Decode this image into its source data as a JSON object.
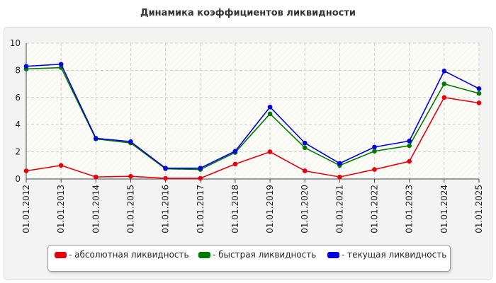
{
  "chart_data": {
    "type": "line",
    "title": "Динамика коэффициентов ликвидности",
    "categories": [
      "01.01.2012",
      "01.01.2013",
      "01.01.2014",
      "01.01.2015",
      "01.01.2016",
      "01.01.2017",
      "01.01.2018",
      "01.01.2019",
      "01.01.2020",
      "01.01.2021",
      "01.01.2022",
      "01.01.2023",
      "01.01.2024",
      "01.01.2025"
    ],
    "series": [
      {
        "name": "- абсолютная ликвидность",
        "color": "#e8000b",
        "values": [
          0.6,
          1.0,
          0.15,
          0.2,
          0.05,
          0.05,
          1.1,
          2.0,
          0.6,
          0.15,
          0.7,
          1.3,
          6.0,
          5.6
        ]
      },
      {
        "name": "- быстрая ликвидность",
        "color": "#007a00",
        "values": [
          8.1,
          8.2,
          2.95,
          2.65,
          0.75,
          0.7,
          1.95,
          4.8,
          2.3,
          1.0,
          2.05,
          2.45,
          7.0,
          6.3
        ]
      },
      {
        "name": "- текущая ликвидность",
        "color": "#0000e6",
        "values": [
          8.3,
          8.45,
          3.0,
          2.75,
          0.8,
          0.8,
          2.05,
          5.3,
          2.65,
          1.15,
          2.35,
          2.8,
          7.95,
          6.65
        ]
      }
    ],
    "ylim": [
      0,
      10
    ],
    "yticks": [
      0,
      2,
      4,
      6,
      8,
      10
    ],
    "grid": true,
    "legend_position": "bottom"
  }
}
